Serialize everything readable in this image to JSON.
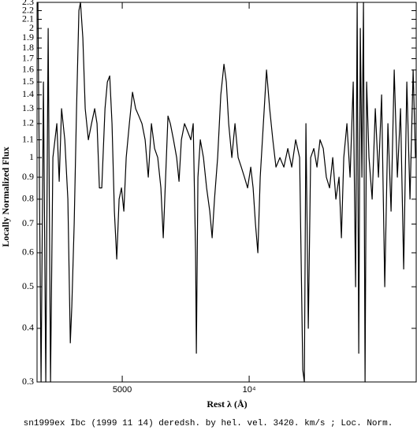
{
  "chart_data": {
    "type": "line",
    "title": "sn1999ex Ibc (1999 11 14) deredsh. by hel. vel.  3420. km/s ;  Loc. Norm.",
    "x_label": "Rest λ (Å)",
    "y_label": "Locally Normalized Flux",
    "x_scale": "log",
    "y_scale": "log",
    "color": "#000000",
    "xlim": [
      3140,
      24900
    ],
    "ylim": [
      0.3,
      2.3
    ],
    "xticks": [
      5000,
      {
        "value": 10000,
        "label": "10⁴"
      }
    ],
    "yticks": [
      0.3,
      0.4,
      0.5,
      0.6,
      0.7,
      0.8,
      0.9,
      1,
      1.1,
      1.2,
      1.3,
      1.4,
      1.5,
      1.6,
      1.7,
      1.8,
      1.9,
      2,
      2.1,
      2.2,
      2.3
    ],
    "x": [
      3155,
      3210,
      3252,
      3294,
      3337,
      3380,
      3424,
      3499,
      3544,
      3590,
      3653,
      3716,
      3765,
      3797,
      3846,
      3896,
      3947,
      3981,
      4033,
      4085,
      4156,
      4228,
      4302,
      4357,
      4414,
      4472,
      4550,
      4609,
      4669,
      4729,
      4790,
      4852,
      4915,
      4979,
      5044,
      5110,
      5199,
      5289,
      5380,
      5474,
      5570,
      5666,
      5764,
      5864,
      5966,
      6070,
      6175,
      6256,
      6337,
      6419,
      6502,
      6615,
      6730,
      6818,
      6906,
      7026,
      7148,
      7273,
      7367,
      7463,
      7495,
      7559,
      7658,
      7791,
      7926,
      8064,
      8169,
      8275,
      8418,
      8565,
      8714,
      8827,
      8941,
      9097,
      9255,
      9415,
      9579,
      9745,
      9914,
      10086,
      10218,
      10350,
      10485,
      10621,
      10806,
      10993,
      11185,
      11379,
      11576,
      11828,
      12085,
      12349,
      12617,
      12892,
      13172,
      13401,
      13517,
      13634,
      13810,
      13989,
      14233,
      14479,
      14730,
      14986,
      15246,
      15511,
      15781,
      16055,
      16334,
      16547,
      16764,
      17055,
      17352,
      17653,
      17883,
      18038,
      18193,
      18350,
      18509,
      18669,
      18831,
      18994,
      19241,
      19576,
      19915,
      20261,
      20613,
      20970,
      21335,
      21705,
      22083,
      22466,
      22857,
      23254,
      23658,
      24069,
      24487,
      24806
    ],
    "values": [
      2.3,
      0.3,
      1.5,
      0.3,
      2.0,
      0.3,
      1.0,
      1.2,
      0.88,
      1.3,
      1.1,
      0.8,
      0.37,
      0.45,
      0.7,
      1.3,
      2.2,
      2.3,
      1.9,
      1.3,
      1.1,
      1.2,
      1.3,
      1.2,
      0.85,
      0.85,
      1.3,
      1.5,
      1.55,
      1.2,
      0.75,
      0.58,
      0.8,
      0.85,
      0.75,
      1.0,
      1.2,
      1.42,
      1.3,
      1.25,
      1.2,
      1.1,
      0.9,
      1.2,
      1.05,
      1.0,
      0.85,
      0.65,
      0.9,
      1.25,
      1.2,
      1.1,
      1.0,
      0.88,
      1.1,
      1.2,
      1.15,
      1.1,
      1.2,
      0.6,
      0.35,
      0.9,
      1.1,
      1.0,
      0.85,
      0.75,
      0.65,
      0.8,
      1.0,
      1.4,
      1.65,
      1.5,
      1.2,
      1.0,
      1.2,
      1.0,
      0.95,
      0.9,
      0.85,
      0.95,
      0.85,
      0.7,
      0.6,
      0.9,
      1.2,
      1.6,
      1.3,
      1.1,
      0.95,
      1.0,
      0.95,
      1.05,
      0.95,
      1.1,
      1.0,
      0.32,
      0.3,
      1.2,
      0.4,
      1.0,
      1.05,
      0.95,
      1.1,
      1.05,
      0.9,
      0.85,
      1.0,
      0.8,
      0.9,
      0.65,
      1.0,
      1.2,
      0.9,
      1.5,
      0.5,
      2.3,
      0.35,
      2.0,
      0.9,
      2.3,
      0.3,
      1.5,
      1.0,
      0.8,
      1.3,
      0.9,
      1.4,
      0.5,
      1.2,
      0.75,
      1.6,
      0.9,
      1.3,
      0.55,
      1.5,
      0.8,
      1.6,
      1.0
    ]
  }
}
